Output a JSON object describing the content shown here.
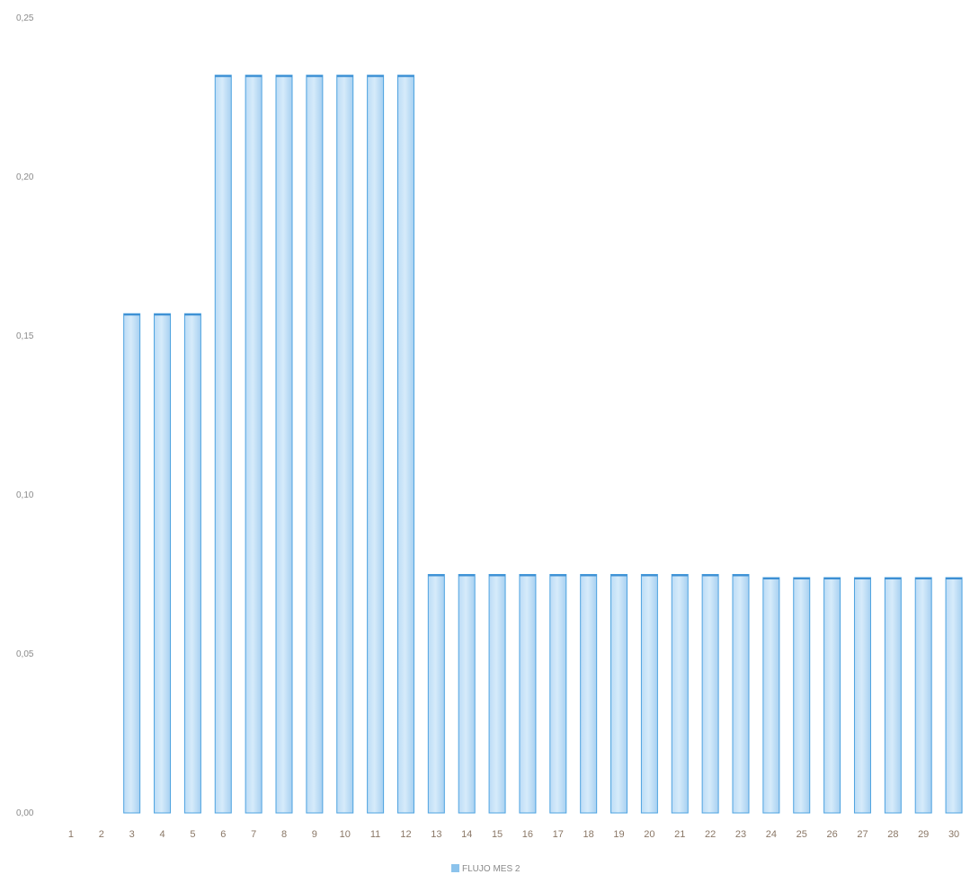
{
  "chart_data": {
    "type": "bar",
    "categories": [
      "1",
      "2",
      "3",
      "4",
      "5",
      "6",
      "7",
      "8",
      "9",
      "10",
      "11",
      "12",
      "13",
      "14",
      "15",
      "16",
      "17",
      "18",
      "19",
      "20",
      "21",
      "22",
      "23",
      "24",
      "25",
      "26",
      "27",
      "28",
      "29",
      "30"
    ],
    "series": [
      {
        "name": "FLUJO MES 2",
        "values": [
          0,
          0,
          0.157,
          0.157,
          0.157,
          0.232,
          0.232,
          0.232,
          0.232,
          0.232,
          0.232,
          0.232,
          0.075,
          0.075,
          0.075,
          0.075,
          0.075,
          0.075,
          0.075,
          0.075,
          0.075,
          0.075,
          0.075,
          0.074,
          0.074,
          0.074,
          0.074,
          0.074,
          0.074,
          0.074
        ]
      }
    ],
    "yticks": [
      "0,00",
      "0,05",
      "0,10",
      "0,15",
      "0,20",
      "0,25"
    ],
    "ylim": [
      0,
      0.25
    ],
    "grid": false,
    "legend_position": "bottom",
    "colors": {
      "bar_fill_light": "#cfe6f8",
      "bar_fill_dark": "#9ccbf0",
      "bar_stroke": "#4ea3e0",
      "legend_swatch": "#8cc3ec"
    }
  }
}
